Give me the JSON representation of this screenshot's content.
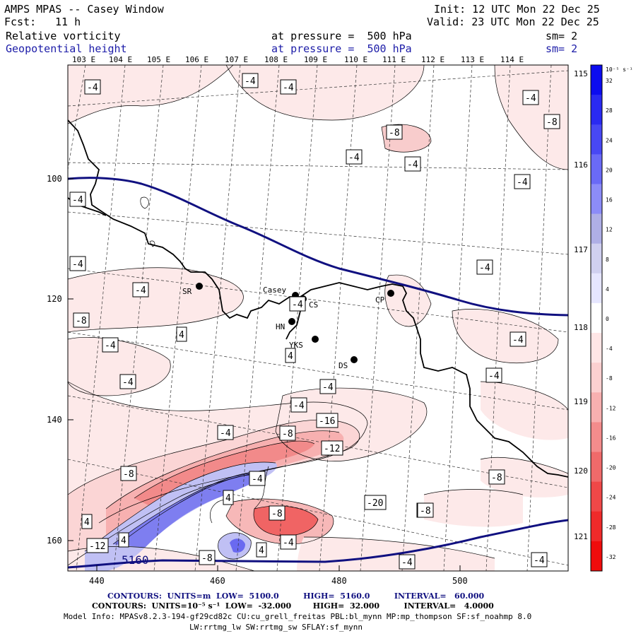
{
  "header": {
    "model": "AMPS MPAS -- Casey Window",
    "fcst_label": "Fcst:",
    "fcst_value": "11 h",
    "init": "Init: 12 UTC Mon 22 Dec 25",
    "valid": "Valid: 23 UTC Mon 22 Dec 25",
    "field1": "Relative vorticity",
    "field1_level": "at pressure =  500 hPa",
    "field1_sm": "sm= 2",
    "field2": "Geopotential height",
    "field2_level": "at pressure =  500 hPa",
    "field2_sm": "sm= 2"
  },
  "map": {
    "top_lon_labels": [
      "103 E",
      "104 E",
      "105 E",
      "106 E",
      "107 E",
      "108 E",
      "109 E",
      "110 E",
      "111 E",
      "112 E",
      "113 E",
      "114 E"
    ],
    "right_lat_labels": [
      "115 E",
      "116 E",
      "117 E",
      "118 E",
      "119 E",
      "120 E",
      "121 E"
    ],
    "left_ticks": [
      "100",
      "120",
      "140",
      "160"
    ],
    "bottom_ticks": [
      "440",
      "460",
      "480",
      "500"
    ],
    "stations": [
      {
        "id": "SR",
        "label": "SR"
      },
      {
        "id": "Casey",
        "label": "Casey"
      },
      {
        "id": "CS",
        "label": "CS"
      },
      {
        "id": "HN",
        "label": "HN"
      },
      {
        "id": "YKS",
        "label": "YKS"
      },
      {
        "id": "DS",
        "label": "DS"
      },
      {
        "id": "CP",
        "label": "CP"
      }
    ],
    "contour_labels": [
      "-4",
      "-4",
      "-4",
      "-4",
      "-8",
      "-8",
      "-4",
      "-4",
      "-4",
      "-4",
      "-4",
      "-4",
      "-4",
      "-8",
      "-4",
      "4",
      "-4",
      "4",
      "-4",
      "-4",
      "-4",
      "-4",
      "-4",
      "-8",
      "-16",
      "-12",
      "-8",
      "-4",
      "4",
      "-8",
      "-20",
      "-4",
      "-8",
      "4",
      "4",
      "-12",
      "4",
      "-4",
      "-8",
      "-4",
      "-8",
      "-4",
      "-4",
      "-4",
      "-4"
    ],
    "height_label": "5160"
  },
  "colorbar": {
    "unit": "10⁻⁵ s⁻¹",
    "ticks": [
      "32",
      "28",
      "24",
      "20",
      "16",
      "12",
      "8",
      "4",
      "0",
      "-4",
      "-8",
      "-12",
      "-16",
      "-20",
      "-24",
      "-28",
      "-32"
    ],
    "colors": [
      "#0c0cf0",
      "#2a2af2",
      "#4848f4",
      "#6a6af6",
      "#8c8cf8",
      "#afafe6",
      "#d0d0f0",
      "#e6e6ff",
      "#ffffff",
      "#ffe6e6",
      "#fcd0d0",
      "#f8b0b0",
      "#f48c8c",
      "#f06a6a",
      "#f04848",
      "#f02a2a",
      "#f00c0c"
    ]
  },
  "footer": {
    "line1": "CONTOURS:  UNITS=m  LOW=  5100.0         HIGH=  5160.0         INTERVAL=   60.000",
    "line2": "CONTOURS:  UNITS=10⁻⁵ s⁻¹  LOW=  -32.000        HIGH=  32.000         INTERVAL=   4.0000",
    "line3": "Model Info: MPASv8.2.3-194-gf29cd82c CU:cu_grell_freitas PBL:bl_mynn MP:mp_thompson SF:sf_noahmp 8.0",
    "line4": "LW:rrtmg_lw SW:rrtmg_sw SFLAY:sf_mynn"
  }
}
